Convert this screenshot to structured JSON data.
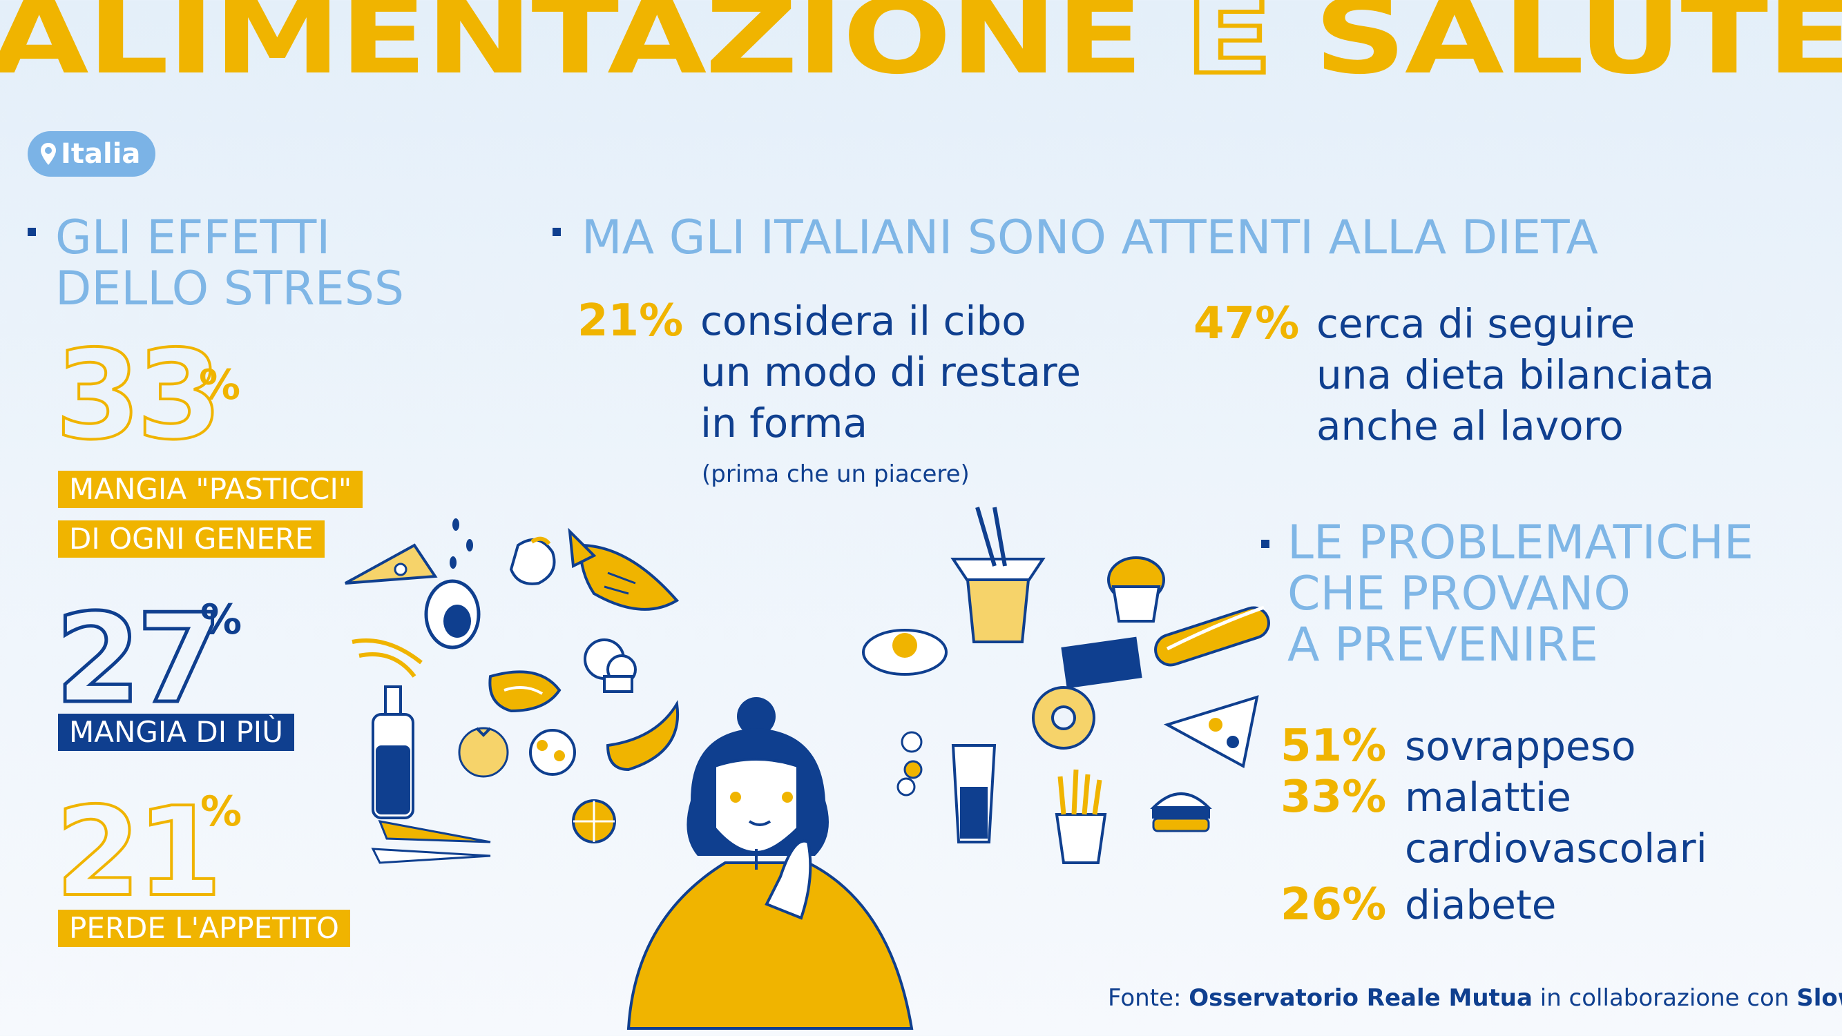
{
  "title": {
    "part1": "ALIMENTAZIONE",
    "part2": "E",
    "part3": "SALUTE"
  },
  "location": {
    "label": "Italia",
    "icon": "pin-icon"
  },
  "stress": {
    "heading_line1": "GLI EFFETTI",
    "heading_line2": "DELLO STRESS",
    "stats": [
      {
        "value": "33",
        "unit": "%",
        "label_line1": "MANGIA \"PASTICCI\"",
        "label_line2": "DI OGNI GENERE"
      },
      {
        "value": "27",
        "unit": "%",
        "label_line1": "MANGIA DI PIÙ"
      },
      {
        "value": "21",
        "unit": "%",
        "label_line1": "PERDE L'APPETITO"
      }
    ]
  },
  "diet": {
    "heading": "MA GLI ITALIANI SONO ATTENTI ALLA DIETA",
    "items": [
      {
        "pct": "21%",
        "line1": "considera il cibo",
        "line2": "un modo di restare",
        "line3": "in forma",
        "note": "(prima che un piacere)"
      },
      {
        "pct": "47%",
        "line1": "cerca di seguire",
        "line2": "una dieta bilanciata",
        "line3": "anche al lavoro"
      }
    ]
  },
  "problems": {
    "heading_line1": "LE PROBLEMATICHE",
    "heading_line2": "CHE PROVANO",
    "heading_line3": "A PREVENIRE",
    "items": [
      {
        "pct": "51%",
        "label": "sovrappeso"
      },
      {
        "pct": "33%",
        "label": "malattie",
        "label2": "cardiovascolari"
      },
      {
        "pct": "26%",
        "label": "diabete"
      }
    ]
  },
  "source": {
    "prefix": "Fonte:",
    "org1": "Osservatorio Reale Mutua",
    "middle": "in collaborazione con",
    "org2": "Slow Food"
  },
  "colors": {
    "yellow": "#f0b400",
    "navy": "#0f3f8f",
    "light_blue": "#7fb6e6"
  }
}
